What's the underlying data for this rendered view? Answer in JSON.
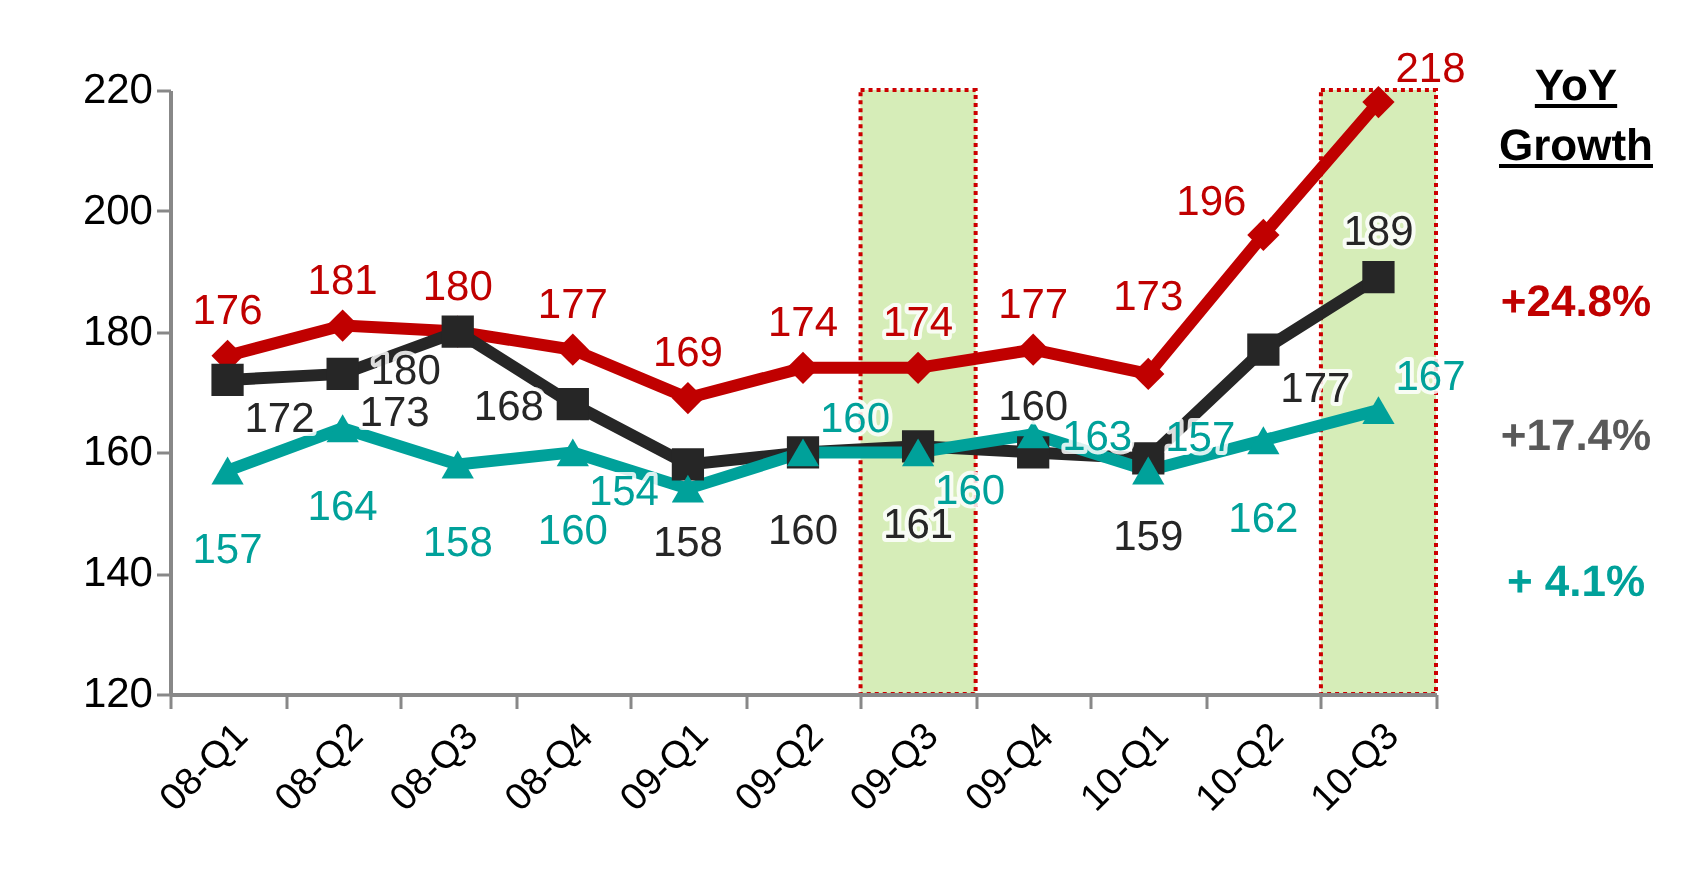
{
  "chart_data": {
    "type": "line",
    "categories": [
      "08-Q1",
      "08-Q2",
      "08-Q3",
      "08-Q4",
      "09-Q1",
      "09-Q2",
      "09-Q3",
      "09-Q4",
      "10-Q1",
      "10-Q2",
      "10-Q3"
    ],
    "series": [
      {
        "color": "#c00000",
        "marker": "diamond",
        "values": [
          176,
          181,
          180,
          177,
          169,
          174,
          174,
          177,
          173,
          196,
          218
        ]
      },
      {
        "color": "#262626",
        "marker": "square",
        "values": [
          172,
          173,
          180,
          168,
          158,
          160,
          161,
          160,
          159,
          177,
          189
        ]
      },
      {
        "color": "#00a19a",
        "marker": "triangle",
        "values": [
          157,
          164,
          158,
          160,
          154,
          160,
          160,
          163,
          157,
          162,
          167
        ]
      }
    ],
    "ylim": [
      120,
      220
    ],
    "yticks": [
      120,
      140,
      160,
      180,
      200,
      220
    ],
    "grid": false,
    "legend": false,
    "data_labels": true,
    "bands": [
      {
        "axis": "x",
        "from": "09-Q3",
        "to": "09-Q3",
        "color": "#d6edb8"
      },
      {
        "axis": "x",
        "from": "10-Q3",
        "to": "10-Q3",
        "color": "#d6edb8"
      }
    ],
    "annotations": [
      "YoY Growth",
      "+24.8%",
      "+17.4%",
      "+ 4.1%"
    ]
  }
}
